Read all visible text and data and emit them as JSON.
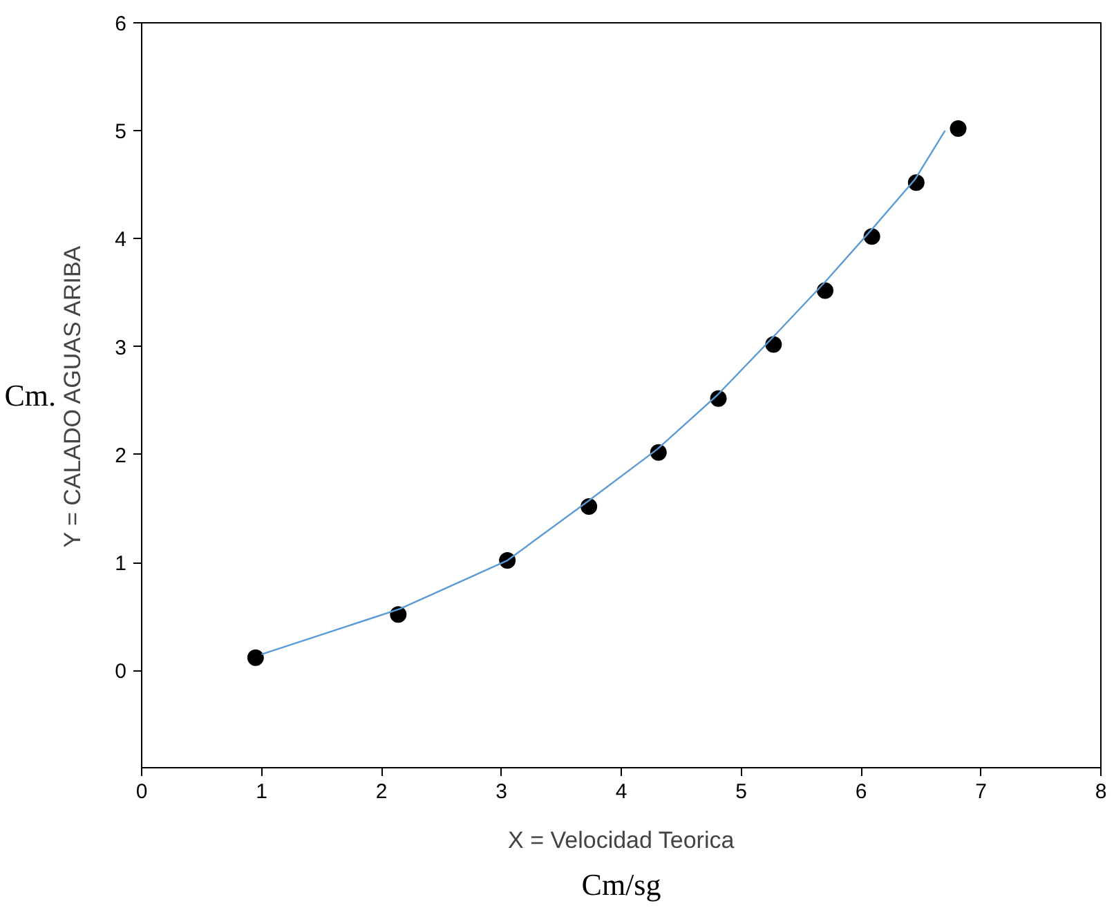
{
  "chart_data": {
    "type": "scatter",
    "xlabel": "X = Velocidad Teorica",
    "ylabel": "Y = CALADO AGUAS ARIBA",
    "annotations": [
      "Cm/sg",
      "Cm."
    ],
    "xlim": [
      0,
      8
    ],
    "ylim": [
      -0.9,
      6
    ],
    "xticks": [
      0,
      1,
      2,
      3,
      4,
      5,
      6,
      7,
      8
    ],
    "yticks": [
      0,
      1,
      2,
      3,
      4,
      5,
      6
    ],
    "grid": false,
    "marker": "circle",
    "series": [
      {
        "color": "#000000",
        "x": [
          0.95,
          2.14,
          3.05,
          3.73,
          4.31,
          4.81,
          5.27,
          5.7,
          6.09,
          6.46,
          6.81
        ],
        "values": [
          0.12,
          0.52,
          1.02,
          1.52,
          2.02,
          2.52,
          3.02,
          3.52,
          4.02,
          4.52,
          5.02
        ]
      },
      {
        "type": "line",
        "color": "#5b9bd5",
        "line_style": "solid",
        "marker": "none",
        "x": [
          1.0,
          2.15,
          3.05,
          3.7,
          4.3,
          4.8,
          5.25,
          5.7,
          6.1,
          6.45,
          6.7
        ],
        "values": [
          0.15,
          0.57,
          1.02,
          1.55,
          2.05,
          2.55,
          3.07,
          3.6,
          4.1,
          4.55,
          5.0
        ]
      }
    ]
  }
}
